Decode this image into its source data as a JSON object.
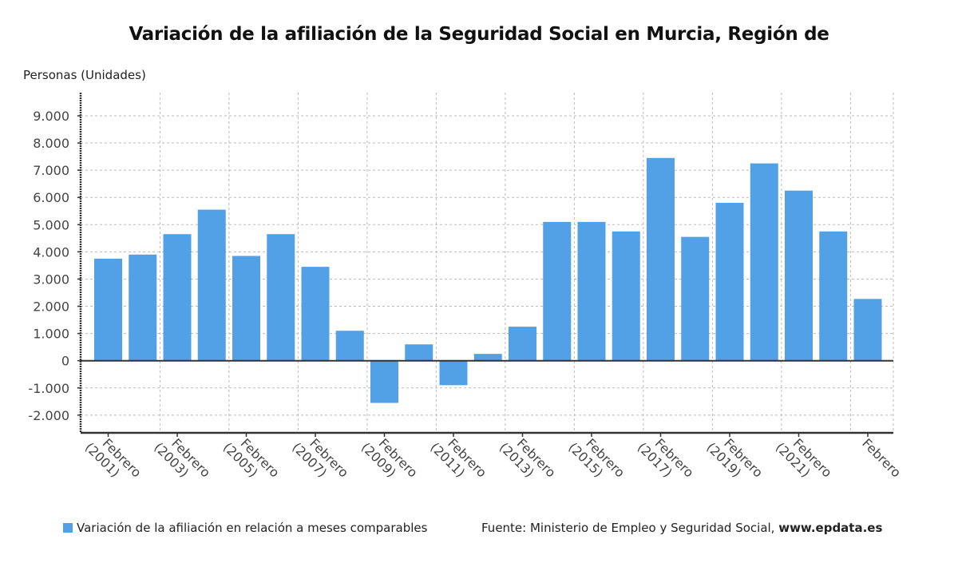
{
  "chart_data": {
    "type": "bar",
    "title": "Variación de la afiliación de la Seguridad Social en Murcia, Región de",
    "ylabel": "Personas (Unidades)",
    "xlabel": "",
    "categories": [
      "2001",
      "2002",
      "2003",
      "2004",
      "2005",
      "2006",
      "2007",
      "2008",
      "2009",
      "2010",
      "2011",
      "2012",
      "2013",
      "2014",
      "2015",
      "2016",
      "2017",
      "2018",
      "2019",
      "2020",
      "2021",
      "2022",
      "2023"
    ],
    "x_tick_labels": [
      {
        "category": "2001",
        "line1": "Febrero",
        "line2": "(2001)"
      },
      {
        "category": "2003",
        "line1": "Febrero",
        "line2": "(2003)"
      },
      {
        "category": "2005",
        "line1": "Febrero",
        "line2": "(2005)"
      },
      {
        "category": "2007",
        "line1": "Febrero",
        "line2": "(2007)"
      },
      {
        "category": "2009",
        "line1": "Febrero",
        "line2": "(2009)"
      },
      {
        "category": "2011",
        "line1": "Febrero",
        "line2": "(2011)"
      },
      {
        "category": "2013",
        "line1": "Febrero",
        "line2": "(2013)"
      },
      {
        "category": "2015",
        "line1": "Febrero",
        "line2": "(2015)"
      },
      {
        "category": "2017",
        "line1": "Febrero",
        "line2": "(2017)"
      },
      {
        "category": "2019",
        "line1": "Febrero",
        "line2": "(2019)"
      },
      {
        "category": "2021",
        "line1": "Febrero",
        "line2": "(2021)"
      },
      {
        "category": "2023",
        "line1": "Febrero",
        "line2": ""
      }
    ],
    "series": [
      {
        "name": "Variación de la afiliación en relación a meses comparables",
        "color": "#52a0e5",
        "values": [
          3750,
          3900,
          4650,
          5550,
          3850,
          4650,
          3450,
          1100,
          -1550,
          600,
          -900,
          250,
          1250,
          5100,
          5100,
          4750,
          7450,
          4550,
          5800,
          7250,
          6250,
          4750,
          2270
        ]
      }
    ],
    "y_ticks": [
      -2000,
      -1000,
      0,
      1000,
      2000,
      3000,
      4000,
      5000,
      6000,
      7000,
      8000,
      9000
    ],
    "y_tick_labels": [
      "-2.000",
      "-1.000",
      "0",
      "1.000",
      "2.000",
      "3.000",
      "4.000",
      "5.000",
      "6.000",
      "7.000",
      "8.000",
      "9.000"
    ],
    "ylim": [
      -2650,
      9850
    ],
    "grid": true,
    "legend_position": "bottom-left"
  },
  "legend": {
    "label": "Variación de la afiliación en relación a meses comparables"
  },
  "source": {
    "prefix": "Fuente: Ministerio de Empleo y Seguridad Social, ",
    "site": "www.epdata.es"
  }
}
